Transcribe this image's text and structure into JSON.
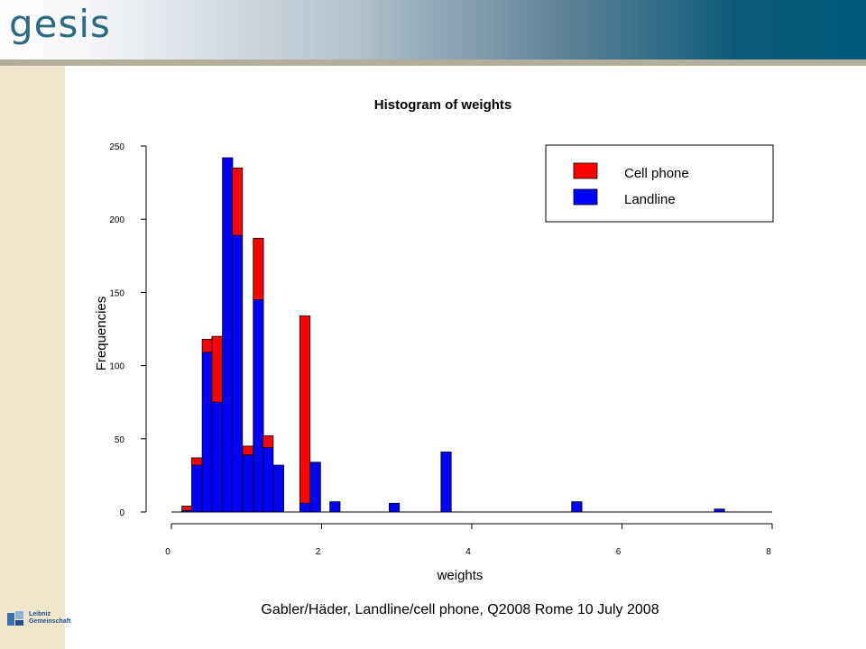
{
  "brand": {
    "logo_text": "gesis",
    "partner_line1": "Leibniz",
    "partner_line2": "Gemeinschaft"
  },
  "footer": "Gabler/Häder, Landline/cell phone, Q2008 Rome 10 July 2008",
  "chart_data": {
    "type": "bar",
    "stacked": true,
    "title": "Histogram of weights",
    "xlabel": "weights",
    "ylabel": "Frequencies",
    "xlim": [
      0,
      8
    ],
    "ylim": [
      0,
      250
    ],
    "xticks": [
      "0",
      "2",
      "4",
      "6",
      "8"
    ],
    "yticks": [
      "0",
      "50",
      "100",
      "150",
      "200",
      "250"
    ],
    "grid": false,
    "legend_position": "top-right",
    "bin_width": 0.136,
    "bins": [
      0.14,
      0.27,
      0.41,
      0.54,
      0.68,
      0.81,
      0.95,
      1.09,
      1.22,
      1.36,
      1.71,
      1.85,
      2.11,
      2.9,
      3.59,
      5.33,
      7.23
    ],
    "series": [
      {
        "name": "Landline",
        "color": "#0000ff",
        "values": [
          1,
          32,
          109,
          75,
          242,
          189,
          39,
          145,
          44,
          32,
          6,
          34,
          7,
          6,
          41,
          7,
          2
        ]
      },
      {
        "name": "Cell phone",
        "color": "#ff0000",
        "values": [
          3,
          5,
          9,
          45,
          0,
          46,
          6,
          42,
          8,
          0,
          128,
          0,
          0,
          0,
          0,
          0,
          0
        ]
      }
    ]
  }
}
